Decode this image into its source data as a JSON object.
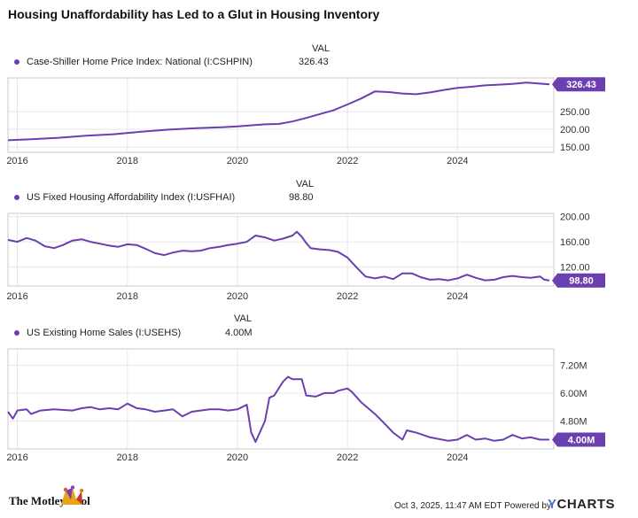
{
  "title": "Housing Unaffordability has Led to a Glut in Housing Inventory",
  "val_header": "VAL",
  "colors": {
    "series": "#6a3fb0",
    "grid": "#e6e6e6",
    "axis_text": "#333333",
    "frame": "#c8c8c8"
  },
  "chart_data": [
    {
      "type": "line",
      "series": [
        {
          "name": "Case-Shiller Home Price Index: National (I:CSHPIN)",
          "value_label": "326.43"
        }
      ],
      "x_tick_labels": [
        "2016",
        "2018",
        "2020",
        "2022",
        "2024"
      ],
      "y_tick_labels": [
        "150.00",
        "200.00",
        "250.00"
      ],
      "last_value_label": "326.43",
      "xlim": [
        2015.83,
        2025.75
      ],
      "ylim": [
        135,
        345
      ],
      "points": [
        [
          2015.83,
          169
        ],
        [
          2016.25,
          172
        ],
        [
          2016.75,
          176
        ],
        [
          2017.25,
          182
        ],
        [
          2017.75,
          186
        ],
        [
          2018.25,
          193
        ],
        [
          2018.75,
          199
        ],
        [
          2019.25,
          203
        ],
        [
          2019.75,
          206
        ],
        [
          2020.0,
          208
        ],
        [
          2020.5,
          214
        ],
        [
          2020.75,
          215
        ],
        [
          2021.0,
          222
        ],
        [
          2021.25,
          232
        ],
        [
          2021.5,
          243
        ],
        [
          2021.75,
          254
        ],
        [
          2022.0,
          270
        ],
        [
          2022.25,
          287
        ],
        [
          2022.5,
          307
        ],
        [
          2022.75,
          305
        ],
        [
          2023.0,
          301
        ],
        [
          2023.25,
          299
        ],
        [
          2023.5,
          304
        ],
        [
          2023.75,
          311
        ],
        [
          2024.0,
          317
        ],
        [
          2024.25,
          320
        ],
        [
          2024.5,
          324
        ],
        [
          2024.75,
          326
        ],
        [
          2025.0,
          328
        ],
        [
          2025.25,
          332
        ],
        [
          2025.67,
          327
        ]
      ]
    },
    {
      "type": "line",
      "series": [
        {
          "name": "US Fixed Housing Affordability Index (I:USFHAI)",
          "value_label": "98.80"
        }
      ],
      "x_tick_labels": [
        "2016",
        "2018",
        "2020",
        "2022",
        "2024"
      ],
      "y_tick_labels": [
        "120.00",
        "160.00",
        "200.00"
      ],
      "last_value_label": "98.80",
      "xlim": [
        2015.83,
        2025.75
      ],
      "ylim": [
        90,
        205
      ],
      "points": [
        [
          2015.83,
          163
        ],
        [
          2016.0,
          160
        ],
        [
          2016.17,
          166
        ],
        [
          2016.33,
          162
        ],
        [
          2016.5,
          153
        ],
        [
          2016.67,
          150
        ],
        [
          2016.83,
          155
        ],
        [
          2017.0,
          162
        ],
        [
          2017.17,
          164
        ],
        [
          2017.33,
          160
        ],
        [
          2017.5,
          157
        ],
        [
          2017.67,
          154
        ],
        [
          2017.83,
          152
        ],
        [
          2018.0,
          156
        ],
        [
          2018.17,
          155
        ],
        [
          2018.33,
          149
        ],
        [
          2018.5,
          142
        ],
        [
          2018.67,
          139
        ],
        [
          2018.83,
          143
        ],
        [
          2019.0,
          146
        ],
        [
          2019.17,
          145
        ],
        [
          2019.33,
          146
        ],
        [
          2019.5,
          150
        ],
        [
          2019.67,
          152
        ],
        [
          2019.83,
          155
        ],
        [
          2020.0,
          157
        ],
        [
          2020.17,
          160
        ],
        [
          2020.25,
          165
        ],
        [
          2020.33,
          170
        ],
        [
          2020.5,
          167
        ],
        [
          2020.67,
          162
        ],
        [
          2020.83,
          165
        ],
        [
          2021.0,
          170
        ],
        [
          2021.08,
          176
        ],
        [
          2021.17,
          168
        ],
        [
          2021.25,
          158
        ],
        [
          2021.33,
          150
        ],
        [
          2021.5,
          148
        ],
        [
          2021.67,
          147
        ],
        [
          2021.83,
          144
        ],
        [
          2022.0,
          135
        ],
        [
          2022.17,
          119
        ],
        [
          2022.33,
          105
        ],
        [
          2022.5,
          102
        ],
        [
          2022.67,
          105
        ],
        [
          2022.83,
          101
        ],
        [
          2023.0,
          110
        ],
        [
          2023.17,
          110
        ],
        [
          2023.33,
          104
        ],
        [
          2023.5,
          100
        ],
        [
          2023.67,
          101
        ],
        [
          2023.83,
          99
        ],
        [
          2024.0,
          102
        ],
        [
          2024.17,
          108
        ],
        [
          2024.33,
          103
        ],
        [
          2024.5,
          99
        ],
        [
          2024.67,
          100
        ],
        [
          2024.83,
          104
        ],
        [
          2025.0,
          106
        ],
        [
          2025.17,
          104
        ],
        [
          2025.33,
          103
        ],
        [
          2025.5,
          105
        ],
        [
          2025.58,
          100
        ],
        [
          2025.67,
          98.8
        ]
      ]
    },
    {
      "type": "line",
      "series": [
        {
          "name": "US Existing Home Sales (I:USEHS)",
          "value_label": "4.00M"
        }
      ],
      "x_tick_labels": [
        "2016",
        "2018",
        "2020",
        "2022",
        "2024"
      ],
      "y_tick_labels": [
        "4.80M",
        "6.00M",
        "7.20M"
      ],
      "last_value_label": "4.00M",
      "xlim": [
        2015.83,
        2025.75
      ],
      "ylim": [
        3.6,
        7.9
      ],
      "points": [
        [
          2015.83,
          5.2
        ],
        [
          2015.92,
          4.9
        ],
        [
          2016.0,
          5.25
        ],
        [
          2016.17,
          5.3
        ],
        [
          2016.25,
          5.1
        ],
        [
          2016.42,
          5.25
        ],
        [
          2016.67,
          5.3
        ],
        [
          2017.0,
          5.25
        ],
        [
          2017.17,
          5.35
        ],
        [
          2017.33,
          5.4
        ],
        [
          2017.5,
          5.3
        ],
        [
          2017.67,
          5.35
        ],
        [
          2017.83,
          5.3
        ],
        [
          2018.0,
          5.55
        ],
        [
          2018.17,
          5.35
        ],
        [
          2018.33,
          5.3
        ],
        [
          2018.5,
          5.2
        ],
        [
          2018.67,
          5.25
        ],
        [
          2018.83,
          5.3
        ],
        [
          2019.0,
          5.0
        ],
        [
          2019.17,
          5.2
        ],
        [
          2019.33,
          5.25
        ],
        [
          2019.5,
          5.3
        ],
        [
          2019.67,
          5.3
        ],
        [
          2019.83,
          5.25
        ],
        [
          2020.0,
          5.3
        ],
        [
          2020.17,
          5.5
        ],
        [
          2020.25,
          4.3
        ],
        [
          2020.33,
          3.9
        ],
        [
          2020.5,
          4.8
        ],
        [
          2020.58,
          5.8
        ],
        [
          2020.67,
          5.9
        ],
        [
          2020.83,
          6.5
        ],
        [
          2020.92,
          6.7
        ],
        [
          2021.0,
          6.6
        ],
        [
          2021.17,
          6.6
        ],
        [
          2021.25,
          5.9
        ],
        [
          2021.42,
          5.85
        ],
        [
          2021.58,
          6.0
        ],
        [
          2021.75,
          6.0
        ],
        [
          2021.83,
          6.1
        ],
        [
          2022.0,
          6.2
        ],
        [
          2022.08,
          6.05
        ],
        [
          2022.25,
          5.6
        ],
        [
          2022.5,
          5.1
        ],
        [
          2022.67,
          4.7
        ],
        [
          2022.83,
          4.3
        ],
        [
          2023.0,
          4.0
        ],
        [
          2023.08,
          4.4
        ],
        [
          2023.25,
          4.3
        ],
        [
          2023.5,
          4.1
        ],
        [
          2023.83,
          3.95
        ],
        [
          2024.0,
          4.0
        ],
        [
          2024.17,
          4.2
        ],
        [
          2024.33,
          4.0
        ],
        [
          2024.5,
          4.05
        ],
        [
          2024.67,
          3.95
        ],
        [
          2024.83,
          4.0
        ],
        [
          2025.0,
          4.2
        ],
        [
          2025.17,
          4.05
        ],
        [
          2025.33,
          4.1
        ],
        [
          2025.5,
          4.0
        ],
        [
          2025.67,
          4.0
        ]
      ]
    }
  ],
  "footer": {
    "brand": "The Motley Fool",
    "timestamp": "Oct 3, 2025, 11:47 AM EDT Powered by",
    "ycharts_y": "Y",
    "ycharts_rest": "CHARTS"
  }
}
